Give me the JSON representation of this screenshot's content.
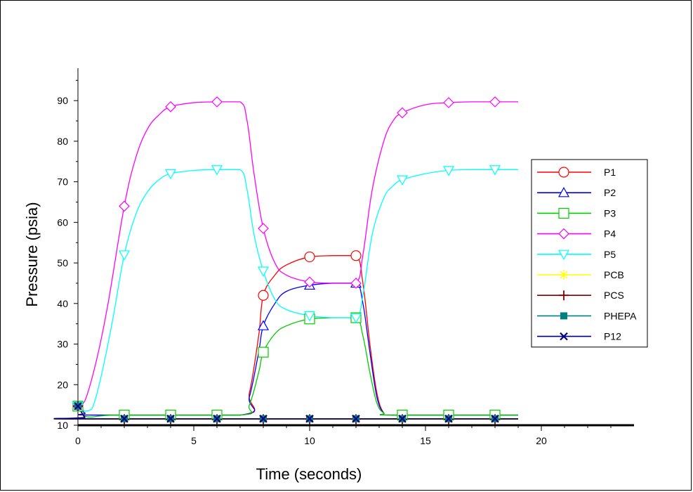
{
  "chart_data": {
    "type": "line",
    "xlabel": "Time (seconds)",
    "ylabel": "Pressure (psia)",
    "xlim": [
      0,
      24
    ],
    "ylim": [
      10,
      98
    ],
    "xticks": [
      0,
      5,
      10,
      15,
      20
    ],
    "yticks": [
      10,
      20,
      30,
      40,
      50,
      60,
      70,
      80,
      90
    ],
    "grid": false,
    "legend_position": "right",
    "series": [
      {
        "name": "P1",
        "color": "#ff0000",
        "marker": "circle",
        "curve": [
          [
            0,
            14.7
          ],
          [
            0.3,
            13.0
          ],
          [
            0.6,
            12.5
          ],
          [
            7.0,
            12.5
          ],
          [
            7.4,
            18
          ],
          [
            7.8,
            32
          ],
          [
            8.0,
            42
          ],
          [
            8.5,
            47
          ],
          [
            9,
            49.5
          ],
          [
            10,
            51.5
          ],
          [
            11,
            51.8
          ],
          [
            12,
            51.8
          ],
          [
            12.3,
            45
          ],
          [
            12.6,
            30
          ],
          [
            12.9,
            18
          ],
          [
            13.2,
            13
          ],
          [
            13.6,
            12.5
          ],
          [
            19,
            12.5
          ]
        ],
        "markers": [
          [
            0,
            14.7
          ],
          [
            8,
            42
          ],
          [
            10,
            51.5
          ],
          [
            12,
            51.8
          ]
        ]
      },
      {
        "name": "P2",
        "color": "#0000ff",
        "marker": "triangle-up",
        "curve": [
          [
            0,
            14.7
          ],
          [
            0.3,
            13.0
          ],
          [
            0.6,
            12.5
          ],
          [
            7.0,
            12.5
          ],
          [
            7.4,
            17
          ],
          [
            7.8,
            28
          ],
          [
            8.0,
            34.5
          ],
          [
            8.5,
            40
          ],
          [
            9,
            43
          ],
          [
            10,
            44.5
          ],
          [
            11,
            45
          ],
          [
            12,
            45
          ],
          [
            12.3,
            40
          ],
          [
            12.6,
            28
          ],
          [
            12.9,
            17
          ],
          [
            13.2,
            13
          ],
          [
            13.6,
            12.5
          ],
          [
            19,
            12.5
          ]
        ],
        "markers": [
          [
            0,
            14.7
          ],
          [
            8,
            34.5
          ],
          [
            10,
            44.5
          ],
          [
            12,
            45
          ]
        ]
      },
      {
        "name": "P3",
        "color": "#00cc00",
        "marker": "square",
        "curve": [
          [
            0,
            14.7
          ],
          [
            0.3,
            12.2
          ],
          [
            0.6,
            12.0
          ],
          [
            1.0,
            12.3
          ],
          [
            2,
            12.5
          ],
          [
            7.0,
            12.5
          ],
          [
            7.4,
            15
          ],
          [
            7.8,
            23
          ],
          [
            8.0,
            28
          ],
          [
            8.5,
            32.5
          ],
          [
            9,
            34.5
          ],
          [
            10,
            36.2
          ],
          [
            11,
            36.5
          ],
          [
            12,
            36.5
          ],
          [
            12.3,
            32
          ],
          [
            12.6,
            23
          ],
          [
            12.9,
            15.5
          ],
          [
            13.2,
            13
          ],
          [
            13.6,
            12.5
          ],
          [
            19,
            12.5
          ]
        ],
        "markers": [
          [
            0,
            14.7
          ],
          [
            2,
            12.5
          ],
          [
            4,
            12.5
          ],
          [
            6,
            12.5
          ],
          [
            8,
            28
          ],
          [
            10,
            36.2
          ],
          [
            12,
            36.5
          ],
          [
            14,
            12.5
          ],
          [
            16,
            12.5
          ],
          [
            18,
            12.5
          ]
        ]
      },
      {
        "name": "P4",
        "color": "#ff00ff",
        "marker": "diamond",
        "curve": [
          [
            0,
            14.7
          ],
          [
            0.3,
            16
          ],
          [
            0.8,
            26
          ],
          [
            1.3,
            40
          ],
          [
            2,
            64
          ],
          [
            2.5,
            76
          ],
          [
            3,
            83
          ],
          [
            3.5,
            86.5
          ],
          [
            4,
            88.5
          ],
          [
            5,
            89.5
          ],
          [
            6,
            89.7
          ],
          [
            7,
            89.7
          ],
          [
            7.3,
            85
          ],
          [
            7.6,
            72
          ],
          [
            8,
            58.5
          ],
          [
            8.5,
            50
          ],
          [
            9,
            47
          ],
          [
            10,
            45.3
          ],
          [
            11,
            45
          ],
          [
            12,
            45
          ],
          [
            12.3,
            52
          ],
          [
            12.7,
            68
          ],
          [
            13.2,
            80
          ],
          [
            13.6,
            85
          ],
          [
            14,
            87
          ],
          [
            15,
            89
          ],
          [
            16,
            89.5
          ],
          [
            17,
            89.7
          ],
          [
            19,
            89.7
          ]
        ],
        "markers": [
          [
            0,
            14.7
          ],
          [
            2,
            64
          ],
          [
            4,
            88.5
          ],
          [
            6,
            89.7
          ],
          [
            8,
            58.5
          ],
          [
            10,
            45.3
          ],
          [
            12,
            45
          ],
          [
            14,
            87
          ],
          [
            16,
            89.5
          ],
          [
            18,
            89.7
          ]
        ]
      },
      {
        "name": "P5",
        "color": "#00ffff",
        "marker": "triangle-down",
        "curve": [
          [
            0,
            14.7
          ],
          [
            0.3,
            13.5
          ],
          [
            0.6,
            14
          ],
          [
            1.0,
            22
          ],
          [
            1.5,
            36
          ],
          [
            2,
            52
          ],
          [
            2.5,
            62
          ],
          [
            3,
            67.5
          ],
          [
            3.5,
            70.5
          ],
          [
            4,
            72
          ],
          [
            5,
            72.8
          ],
          [
            6,
            73
          ],
          [
            7,
            73
          ],
          [
            7.3,
            68
          ],
          [
            7.6,
            57
          ],
          [
            8,
            48
          ],
          [
            8.5,
            41
          ],
          [
            9,
            38.5
          ],
          [
            10,
            37
          ],
          [
            11,
            36.5
          ],
          [
            12,
            36.5
          ],
          [
            12.3,
            42
          ],
          [
            12.7,
            57
          ],
          [
            13.2,
            66
          ],
          [
            13.6,
            69
          ],
          [
            14,
            70.5
          ],
          [
            15,
            72
          ],
          [
            16,
            72.8
          ],
          [
            17,
            73
          ],
          [
            19,
            73
          ]
        ],
        "markers": [
          [
            0,
            14.7
          ],
          [
            2,
            52
          ],
          [
            4,
            72
          ],
          [
            6,
            73
          ],
          [
            8,
            48
          ],
          [
            10,
            37
          ],
          [
            12,
            36.5
          ],
          [
            14,
            70.5
          ],
          [
            16,
            72.8
          ],
          [
            18,
            73
          ]
        ]
      },
      {
        "name": "PCB",
        "color": "#ffff00",
        "marker": "asterisk",
        "curve": [
          [
            0,
            14.7
          ],
          [
            0.3,
            11.8
          ],
          [
            0.5,
            11.5
          ],
          [
            19,
            11.5
          ]
        ],
        "markers": [
          [
            0,
            14.7
          ],
          [
            2,
            11.5
          ],
          [
            4,
            11.5
          ],
          [
            6,
            11.5
          ],
          [
            8,
            11.5
          ],
          [
            10,
            11.5
          ],
          [
            12,
            11.5
          ],
          [
            14,
            11.5
          ],
          [
            16,
            11.5
          ],
          [
            18,
            11.5
          ]
        ]
      },
      {
        "name": "PCS",
        "color": "#800000",
        "marker": "plus",
        "curve": [
          [
            0,
            14.7
          ],
          [
            0.3,
            11.8
          ],
          [
            0.5,
            11.5
          ],
          [
            19,
            11.5
          ]
        ],
        "markers": [
          [
            0,
            14.7
          ],
          [
            2,
            11.5
          ],
          [
            4,
            11.5
          ],
          [
            6,
            11.5
          ],
          [
            8,
            11.5
          ],
          [
            10,
            11.5
          ],
          [
            12,
            11.5
          ],
          [
            14,
            11.5
          ],
          [
            16,
            11.5
          ],
          [
            18,
            11.5
          ]
        ]
      },
      {
        "name": "PHEPA",
        "color": "#008080",
        "marker": "filled-square",
        "curve": [
          [
            0,
            14.7
          ],
          [
            0.3,
            12.0
          ],
          [
            0.5,
            11.6
          ],
          [
            19,
            11.6
          ]
        ],
        "markers": [
          [
            0,
            14.7
          ],
          [
            2,
            11.6
          ],
          [
            4,
            11.6
          ],
          [
            6,
            11.6
          ],
          [
            8,
            11.6
          ],
          [
            10,
            11.6
          ],
          [
            12,
            11.6
          ],
          [
            14,
            11.6
          ],
          [
            16,
            11.6
          ],
          [
            18,
            11.6
          ]
        ]
      },
      {
        "name": "P12",
        "color": "#000080",
        "marker": "x",
        "curve": [
          [
            0,
            14.7
          ],
          [
            0.3,
            12.0
          ],
          [
            0.5,
            11.6
          ],
          [
            19,
            11.6
          ]
        ],
        "markers": [
          [
            0,
            14.7
          ],
          [
            2,
            11.6
          ],
          [
            4,
            11.6
          ],
          [
            6,
            11.6
          ],
          [
            8,
            11.6
          ],
          [
            10,
            11.6
          ],
          [
            12,
            11.6
          ],
          [
            14,
            11.6
          ],
          [
            16,
            11.6
          ],
          [
            18,
            11.6
          ]
        ]
      }
    ]
  }
}
